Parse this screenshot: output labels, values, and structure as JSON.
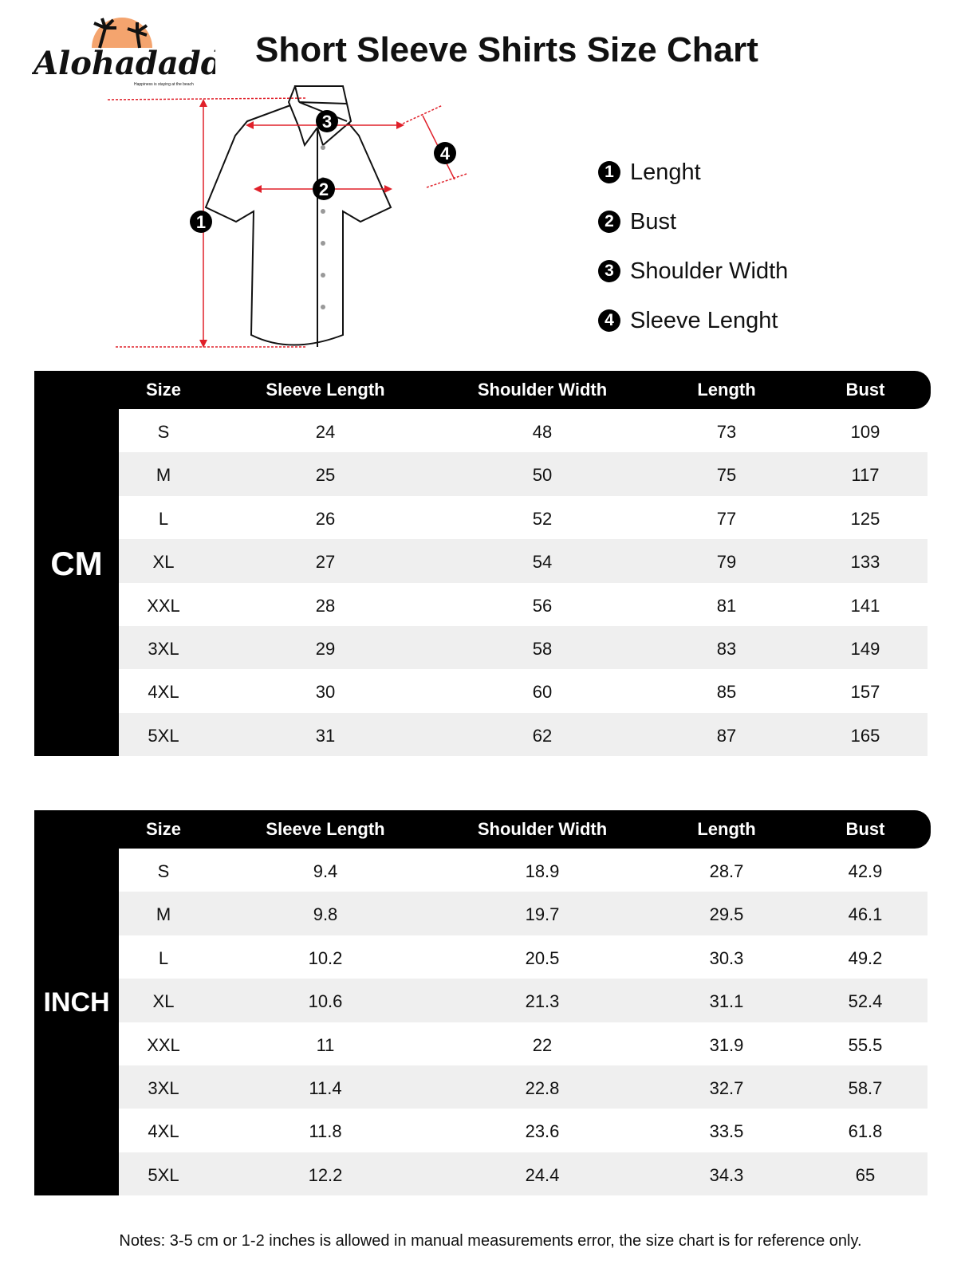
{
  "logo": {
    "brand": "Alohadaddy",
    "tagline": "Happiness is staying at the beach"
  },
  "title": "Short Sleeve Shirts Size Chart",
  "colors": {
    "accent_red": "#e0202a",
    "logo_sun": "#f4a46e",
    "header_bg": "#000000",
    "stripe": "#efefef"
  },
  "diagram_markers": [
    "1",
    "2",
    "3",
    "4"
  ],
  "legend": [
    {
      "n": "1",
      "label": "Lenght"
    },
    {
      "n": "2",
      "label": "Bust"
    },
    {
      "n": "3",
      "label": "Shoulder Width"
    },
    {
      "n": "4",
      "label": "Sleeve Lenght"
    }
  ],
  "columns": [
    "Size",
    "Sleeve Length",
    "Shoulder Width",
    "Length",
    "Bust"
  ],
  "tables": [
    {
      "unit": "CM",
      "rows": [
        [
          "S",
          "24",
          "48",
          "73",
          "109"
        ],
        [
          "M",
          "25",
          "50",
          "75",
          "117"
        ],
        [
          "L",
          "26",
          "52",
          "77",
          "125"
        ],
        [
          "XL",
          "27",
          "54",
          "79",
          "133"
        ],
        [
          "XXL",
          "28",
          "56",
          "81",
          "141"
        ],
        [
          "3XL",
          "29",
          "58",
          "83",
          "149"
        ],
        [
          "4XL",
          "30",
          "60",
          "85",
          "157"
        ],
        [
          "5XL",
          "31",
          "62",
          "87",
          "165"
        ]
      ]
    },
    {
      "unit": "INCH",
      "rows": [
        [
          "S",
          "9.4",
          "18.9",
          "28.7",
          "42.9"
        ],
        [
          "M",
          "9.8",
          "19.7",
          "29.5",
          "46.1"
        ],
        [
          "L",
          "10.2",
          "20.5",
          "30.3",
          "49.2"
        ],
        [
          "XL",
          "10.6",
          "21.3",
          "31.1",
          "52.4"
        ],
        [
          "XXL",
          "11",
          "22",
          "31.9",
          "55.5"
        ],
        [
          "3XL",
          "11.4",
          "22.8",
          "32.7",
          "58.7"
        ],
        [
          "4XL",
          "11.8",
          "23.6",
          "33.5",
          "61.8"
        ],
        [
          "5XL",
          "12.2",
          "24.4",
          "34.3",
          "65"
        ]
      ]
    }
  ],
  "notes": "Notes: 3-5 cm or 1-2 inches is allowed in manual measurements error, the size chart is for reference only."
}
